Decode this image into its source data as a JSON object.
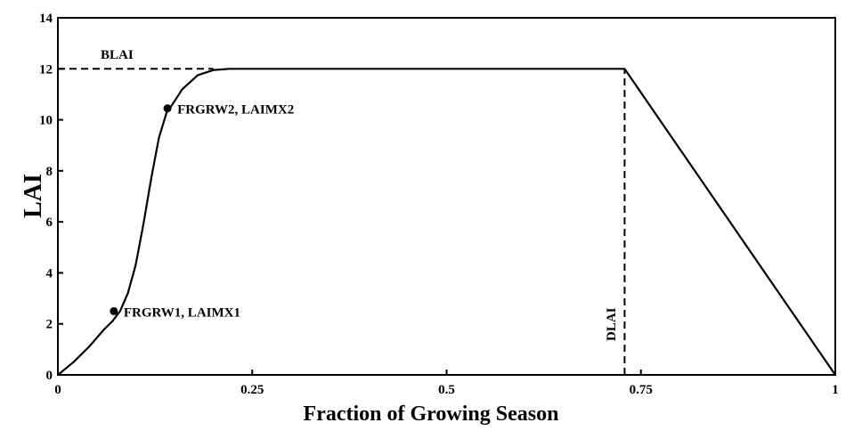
{
  "chart_data": {
    "type": "line",
    "title": "",
    "xlabel": "Fraction of Growing Season",
    "ylabel": "LAI",
    "xlim": [
      0,
      1
    ],
    "ylim": [
      0,
      14
    ],
    "x_ticks": [
      0,
      0.25,
      0.5,
      0.75,
      1
    ],
    "x_tick_labels": [
      "0",
      "0.25",
      "0.5",
      "0.75",
      "1"
    ],
    "y_ticks": [
      0,
      2,
      4,
      6,
      8,
      10,
      12,
      14
    ],
    "y_tick_labels": [
      "0",
      "2",
      "4",
      "6",
      "8",
      "10",
      "12",
      "14"
    ],
    "grid": false,
    "series": [
      {
        "name": "LAI curve",
        "x": [
          0,
          0.02,
          0.04,
          0.06,
          0.07,
          0.08,
          0.09,
          0.1,
          0.11,
          0.12,
          0.13,
          0.14,
          0.145,
          0.16,
          0.18,
          0.2,
          0.22,
          0.25,
          0.5,
          0.729,
          1.0
        ],
        "y": [
          0,
          0.5,
          1.1,
          1.8,
          2.1,
          2.5,
          3.2,
          4.3,
          5.9,
          7.7,
          9.3,
          10.3,
          10.5,
          11.2,
          11.75,
          11.95,
          12,
          12,
          12,
          12,
          0
        ]
      }
    ],
    "points": [
      {
        "x": 0.072,
        "y": 2.5,
        "label": "FRGRW1, LAIMX1"
      },
      {
        "x": 0.141,
        "y": 10.45,
        "label": "FRGRW2, LAIMX2"
      }
    ],
    "reference_lines": [
      {
        "orientation": "horizontal",
        "value": 12,
        "from": 0,
        "to": 0.2,
        "label": "BLAI"
      },
      {
        "orientation": "vertical",
        "value": 0.729,
        "from": 0,
        "to": 12,
        "label": "DLAI"
      }
    ]
  }
}
